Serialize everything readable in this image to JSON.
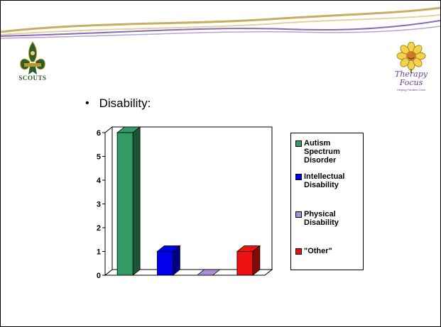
{
  "slide": {
    "bullet_text": "Disability:",
    "left_logo_text": "SCOUTS",
    "right_logo_line1": "Therapy",
    "right_logo_line2": "Focus",
    "right_logo_tagline": "Helping Families Grow"
  },
  "colors": {
    "autism": "#339966",
    "intellectual": "#0000ee",
    "physical": "#a98fd6",
    "other": "#ee1111",
    "swoosh_top": "#c9ad63",
    "swoosh_bottom": "#8a6ab5"
  },
  "chart_data": {
    "type": "bar",
    "title": "",
    "xlabel": "",
    "ylabel": "",
    "ylim": [
      0,
      6
    ],
    "yticks": [
      "0",
      "1",
      "2",
      "3",
      "4",
      "5",
      "6"
    ],
    "grid": true,
    "legend_position": "right",
    "series": [
      {
        "name": "Autism Spectrum Disorder",
        "values": [
          6
        ],
        "color": "#339966"
      },
      {
        "name": "Intellectual Disability",
        "values": [
          1
        ],
        "color": "#0000ee"
      },
      {
        "name": "Physical Disability",
        "values": [
          0
        ],
        "color": "#a98fd6"
      },
      {
        "name": "\"Other\"",
        "values": [
          1
        ],
        "color": "#ee1111"
      }
    ]
  }
}
